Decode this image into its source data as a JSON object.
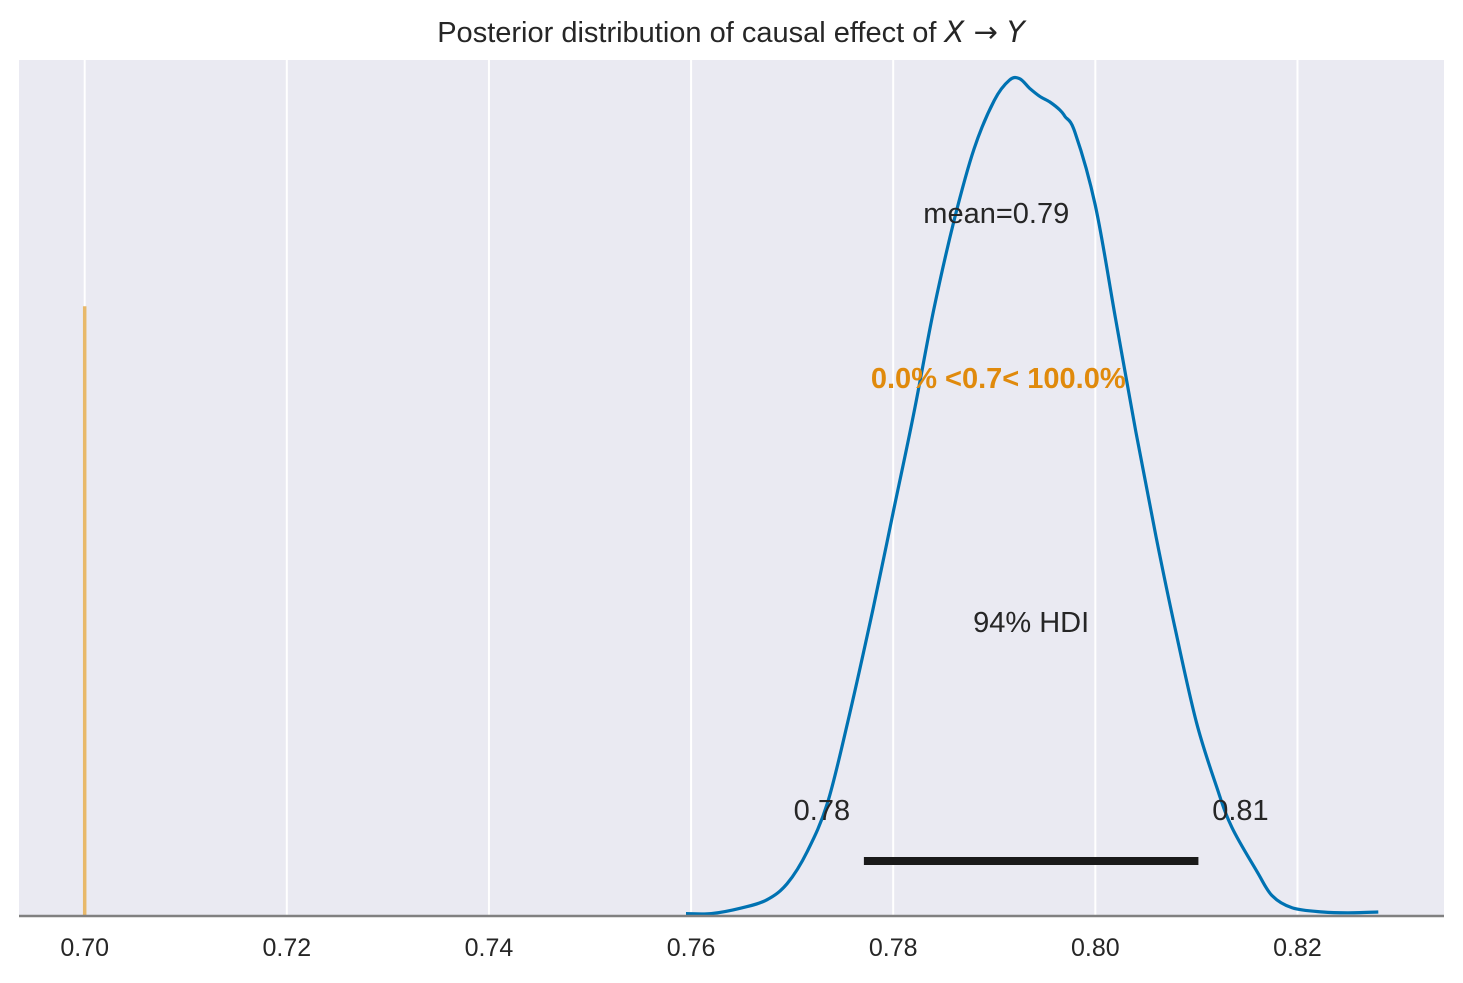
{
  "chart_data": {
    "type": "line",
    "title": "Posterior distribution of causal effect of ",
    "title_math": "X → Y",
    "xlim": [
      0.6935,
      0.8345
    ],
    "ylim": [
      0,
      1.06
    ],
    "x_ticks": [
      0.7,
      0.72,
      0.74,
      0.76,
      0.78,
      0.8,
      0.82
    ],
    "x_tick_labels": [
      "0.70",
      "0.72",
      "0.74",
      "0.76",
      "0.78",
      "0.80",
      "0.82"
    ],
    "grid": true,
    "series": [
      {
        "kind": "kde",
        "color": "#0072b2",
        "x": [
          0.7595,
          0.762,
          0.765,
          0.7675,
          0.7695,
          0.7715,
          0.7735,
          0.7755,
          0.778,
          0.78,
          0.782,
          0.784,
          0.786,
          0.788,
          0.79,
          0.7915,
          0.7925,
          0.7935,
          0.7945,
          0.7955,
          0.7965,
          0.797,
          0.798,
          0.8,
          0.802,
          0.804,
          0.806,
          0.808,
          0.81,
          0.812,
          0.8135,
          0.816,
          0.8175,
          0.8195,
          0.8225,
          0.825,
          0.828
        ],
        "y": [
          0.003,
          0.003,
          0.01,
          0.02,
          0.04,
          0.08,
          0.14,
          0.24,
          0.38,
          0.5,
          0.62,
          0.75,
          0.86,
          0.95,
          1.01,
          1.035,
          1.037,
          1.025,
          1.015,
          1.008,
          0.998,
          0.99,
          0.97,
          0.88,
          0.74,
          0.6,
          0.47,
          0.35,
          0.24,
          0.16,
          0.11,
          0.055,
          0.025,
          0.01,
          0.005,
          0.004,
          0.005
        ]
      }
    ],
    "mean_label": "mean=0.79",
    "mean_value": 0.79,
    "ref_val": 0.7,
    "ref_line_color": "#e8b96a",
    "ref_line_ymax": 0.755,
    "ref_label": "0.0% <0.7< 100.0%",
    "ref_label_color": "#e08a0c",
    "hdi_prob_label": "94% HDI",
    "hdi": [
      0.7771,
      0.8102
    ],
    "hdi_labels": [
      "0.78",
      "0.81"
    ],
    "hdi_color": "#1a1a1a",
    "background": "#eaeaf2",
    "grid_color": "#ffffff",
    "axis_color": "#808080"
  }
}
